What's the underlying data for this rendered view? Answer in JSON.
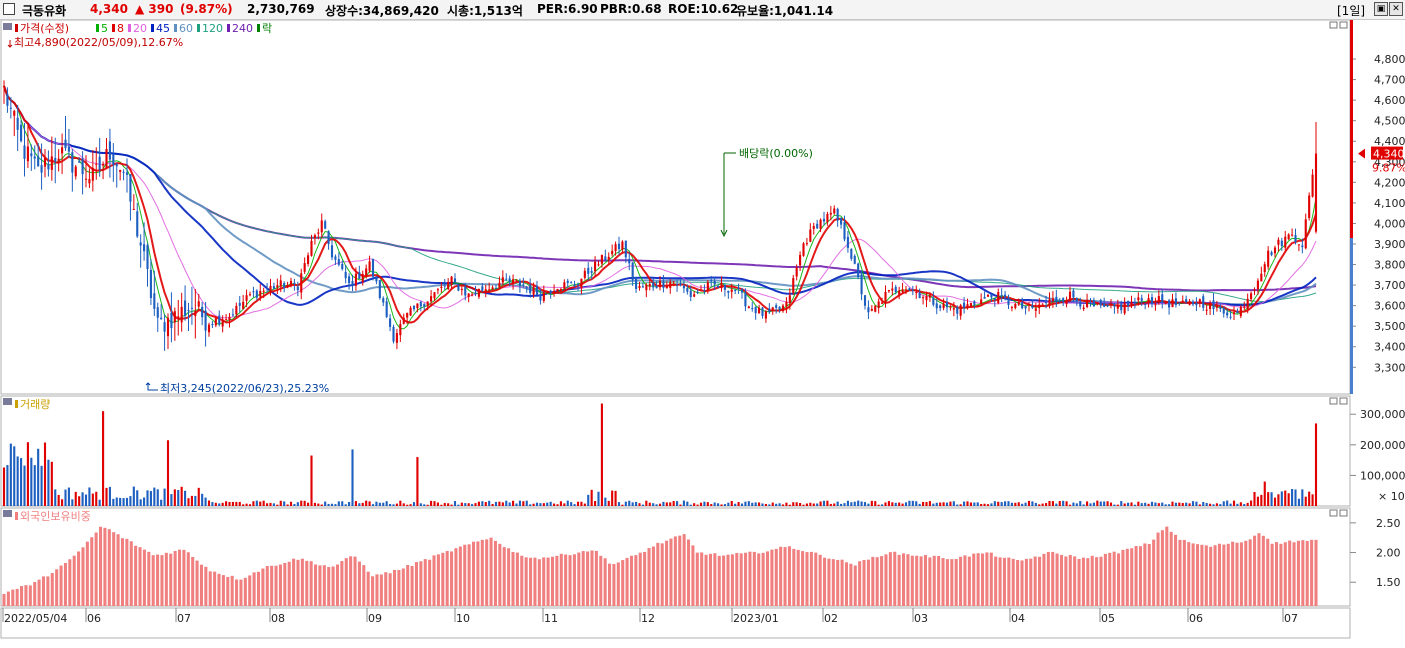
{
  "header": {
    "stock_name": "극동유화",
    "price": "4,340",
    "change": "▲ 390",
    "change_pct": "(9.87%)",
    "volume": "2,730,769",
    "shares": "상장수:34,869,420",
    "market_cap": "시총:1,513억",
    "per": "PER:6.90",
    "pbr": "PBR:0.68",
    "roe": "ROE:10.62",
    "float_ratio": "유보율:1,041.14",
    "period": "[1일]",
    "colors": {
      "up": "#e00000",
      "down": "#1c5fc0"
    }
  },
  "chart_data": [
    {
      "type": "candlestick",
      "legend": [
        {
          "label": "가격(수정)",
          "color": "#cc0000"
        },
        {
          "label": "5",
          "color": "#00b000"
        },
        {
          "label": "8",
          "color": "#e00000"
        },
        {
          "label": "20",
          "color": "#e060e0"
        },
        {
          "label": "45",
          "color": "#0020c0"
        },
        {
          "label": "60",
          "color": "#6090c0"
        },
        {
          "label": "120",
          "color": "#20a080"
        },
        {
          "label": "240",
          "color": "#7020b0"
        },
        {
          "label": "락",
          "color": "#008000"
        }
      ],
      "annotations": {
        "high": "최고4,890(2022/05/09),12.67%",
        "low": "최저3,245(2022/06/23),25.23%",
        "dividend": "배당락(0.00%)"
      },
      "y_ticks": [
        3300,
        3400,
        3500,
        3600,
        3700,
        3800,
        3900,
        4000,
        4100,
        4200,
        4300,
        4400,
        4500,
        4600,
        4700,
        4800
      ],
      "y_tick_labels": [
        "3,300",
        "3,400",
        "3,500",
        "3,600",
        "3,700",
        "3,800",
        "3,900",
        "4,000",
        "4,100",
        "4,200",
        "4,300",
        "4,400",
        "4,500",
        "4,600",
        "4,700",
        "4,800"
      ],
      "ylim": [
        3170,
        4990
      ],
      "current_price_label": "4,340",
      "current_pct_label": "9.87%",
      "x_ticks": [
        "2022/05/04",
        "06",
        "07",
        "08",
        "09",
        "10",
        "11",
        "12",
        "2023/01",
        "02",
        "03",
        "04",
        "05",
        "06",
        "07"
      ],
      "close_path": [
        [
          0,
          4650
        ],
        [
          5,
          4380
        ],
        [
          10,
          4250
        ],
        [
          16,
          4350
        ],
        [
          21,
          4280
        ],
        [
          26,
          4220
        ],
        [
          31,
          4350
        ],
        [
          35,
          4250
        ],
        [
          40,
          3900
        ],
        [
          45,
          3500
        ],
        [
          50,
          3550
        ],
        [
          55,
          3600
        ],
        [
          60,
          3520
        ],
        [
          66,
          3550
        ],
        [
          72,
          3650
        ],
        [
          80,
          3700
        ],
        [
          86,
          3700
        ],
        [
          90,
          3900
        ],
        [
          93,
          4000
        ],
        [
          96,
          3850
        ],
        [
          101,
          3700
        ],
        [
          107,
          3800
        ],
        [
          114,
          3450
        ],
        [
          118,
          3550
        ],
        [
          123,
          3620
        ],
        [
          131,
          3720
        ],
        [
          136,
          3650
        ],
        [
          140,
          3680
        ],
        [
          147,
          3720
        ],
        [
          152,
          3700
        ],
        [
          157,
          3650
        ],
        [
          162,
          3700
        ],
        [
          167,
          3700
        ],
        [
          172,
          3780
        ],
        [
          177,
          3850
        ],
        [
          181,
          3900
        ],
        [
          185,
          3680
        ],
        [
          190,
          3700
        ],
        [
          196,
          3720
        ],
        [
          201,
          3650
        ],
        [
          207,
          3700
        ],
        [
          214,
          3680
        ],
        [
          218,
          3600
        ],
        [
          223,
          3550
        ],
        [
          229,
          3600
        ],
        [
          234,
          3900
        ],
        [
          238,
          4000
        ],
        [
          243,
          4050
        ],
        [
          247,
          3900
        ],
        [
          253,
          3550
        ],
        [
          258,
          3650
        ],
        [
          263,
          3700
        ],
        [
          269,
          3650
        ],
        [
          274,
          3600
        ],
        [
          279,
          3580
        ],
        [
          285,
          3620
        ],
        [
          290,
          3650
        ],
        [
          296,
          3600
        ],
        [
          301,
          3580
        ],
        [
          306,
          3620
        ],
        [
          312,
          3650
        ],
        [
          317,
          3600
        ],
        [
          323,
          3580
        ],
        [
          328,
          3600
        ],
        [
          334,
          3630
        ],
        [
          339,
          3620
        ],
        [
          345,
          3600
        ],
        [
          350,
          3620
        ],
        [
          355,
          3580
        ],
        [
          361,
          3560
        ],
        [
          366,
          3700
        ],
        [
          370,
          3850
        ],
        [
          373,
          3900
        ],
        [
          377,
          3950
        ],
        [
          380,
          3900
        ],
        [
          384,
          4340
        ]
      ]
    },
    {
      "type": "bar",
      "legend": [
        {
          "label": "거래량",
          "color": "#c8a000"
        }
      ],
      "y_tick_labels": [
        "300,000",
        "200,000",
        "100,000"
      ],
      "y_unit": "× 10",
      "values_note": "volume in units of 10 shares"
    },
    {
      "type": "bar",
      "legend": [
        {
          "label": "외국인보유비중",
          "color": "#f08080"
        }
      ],
      "y_tick_labels": [
        "2.50",
        "2.00",
        "1.50"
      ],
      "ylim": [
        1.1,
        2.75
      ],
      "path": [
        [
          0,
          1.32
        ],
        [
          10,
          1.5
        ],
        [
          21,
          1.9
        ],
        [
          30,
          2.45
        ],
        [
          38,
          2.2
        ],
        [
          46,
          1.95
        ],
        [
          55,
          2.05
        ],
        [
          63,
          1.7
        ],
        [
          72,
          1.55
        ],
        [
          80,
          1.75
        ],
        [
          90,
          1.9
        ],
        [
          100,
          1.75
        ],
        [
          107,
          1.95
        ],
        [
          113,
          1.6
        ],
        [
          120,
          1.7
        ],
        [
          130,
          1.9
        ],
        [
          140,
          2.1
        ],
        [
          149,
          2.25
        ],
        [
          156,
          2.0
        ],
        [
          162,
          1.9
        ],
        [
          170,
          1.95
        ],
        [
          180,
          2.05
        ],
        [
          186,
          1.8
        ],
        [
          193,
          1.95
        ],
        [
          200,
          2.15
        ],
        [
          208,
          2.3
        ],
        [
          212,
          2.0
        ],
        [
          220,
          1.95
        ],
        [
          230,
          2.0
        ],
        [
          240,
          2.1
        ],
        [
          250,
          1.95
        ],
        [
          260,
          1.8
        ],
        [
          270,
          2.0
        ],
        [
          280,
          1.95
        ],
        [
          290,
          1.9
        ],
        [
          300,
          2.0
        ],
        [
          310,
          1.85
        ],
        [
          320,
          2.0
        ],
        [
          330,
          1.9
        ],
        [
          340,
          2.0
        ],
        [
          350,
          2.15
        ],
        [
          355,
          2.45
        ],
        [
          360,
          2.2
        ],
        [
          368,
          2.1
        ],
        [
          380,
          2.2
        ],
        [
          384,
          2.35
        ],
        [
          388,
          2.15
        ],
        [
          395,
          2.2
        ],
        [
          401,
          2.2
        ]
      ]
    }
  ]
}
